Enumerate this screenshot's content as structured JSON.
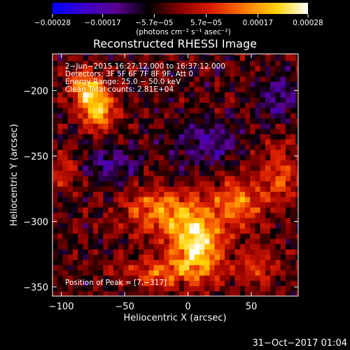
{
  "chart_data": {
    "type": "heatmap",
    "title": "Reconstructed RHESSI Image",
    "xlabel": "Heliocentric X (arcsec)",
    "ylabel": "Heliocentric Y (arcsec)",
    "xlim": [
      -107,
      87
    ],
    "ylim": [
      -357,
      -172
    ],
    "xticks": [
      -100,
      -50,
      0,
      50
    ],
    "xtick_labels": [
      "−100",
      "−50",
      "0",
      "50"
    ],
    "yticks": [
      -200,
      -250,
      -300,
      -350
    ],
    "ytick_labels": [
      "−200",
      "−250",
      "−300",
      "−350"
    ],
    "colorbar": {
      "min": -0.00028,
      "max": 0.00028,
      "unit_label": "(photons cm⁻² s⁻¹ asec⁻²)",
      "ticks": [
        -0.00028,
        -0.00017,
        -5.7e-05,
        5.7e-05,
        0.00017,
        0.00028
      ],
      "tick_labels": [
        "−0.00028",
        "−0.00017",
        "−5.7e−05",
        "5.7e−05",
        "0.00017",
        "0.00028"
      ],
      "colormap": [
        "#0000ff",
        "#3c00c8",
        "#5a0090",
        "#000000",
        "#8c0000",
        "#dc1e00",
        "#ff7800",
        "#ffd200",
        "#ffffff"
      ]
    },
    "annotations": [
      "2−Jun−2015 16:27:12.000 to 16:37:12.000",
      "Detectors: 3F 5F 6F 7F 8F 9F, Att 0",
      "Energy Range: 25.0 − 50.0 keV",
      "Clean     Total counts: 2.81E+04"
    ],
    "peak_label": "Position of Peak = [7,−317]",
    "peak": [
      7,
      -317
    ],
    "sources": [
      {
        "x": -72,
        "y": -213,
        "sx": 10,
        "sy": 11,
        "amp": 0.00027
      },
      {
        "x": -82,
        "y": -195,
        "sx": 8,
        "sy": 8,
        "amp": 0.0002
      },
      {
        "x": -98,
        "y": -260,
        "sx": 7,
        "sy": 10,
        "amp": 0.00011
      },
      {
        "x": 7,
        "y": -317,
        "sx": 15,
        "sy": 18,
        "amp": 0.00028
      },
      {
        "x": -22,
        "y": -292,
        "sx": 20,
        "sy": 12,
        "amp": 0.00018
      },
      {
        "x": 40,
        "y": -285,
        "sx": 16,
        "sy": 13,
        "amp": 0.00016
      },
      {
        "x": 72,
        "y": -262,
        "sx": 10,
        "sy": 16,
        "amp": 0.00013
      },
      {
        "x": -25,
        "y": -338,
        "sx": 20,
        "sy": 8,
        "amp": 0.00014
      },
      {
        "x": 55,
        "y": -335,
        "sx": 12,
        "sy": 10,
        "amp": 0.00011
      },
      {
        "x": 72,
        "y": -205,
        "sx": 9,
        "sy": 12,
        "amp": -0.00012
      },
      {
        "x": 15,
        "y": -240,
        "sx": 18,
        "sy": 12,
        "amp": -0.00011
      },
      {
        "x": -60,
        "y": -255,
        "sx": 14,
        "sy": 10,
        "amp": -0.0001
      }
    ]
  },
  "footer": {
    "timestamp": "31−Oct−2017 01:04"
  }
}
